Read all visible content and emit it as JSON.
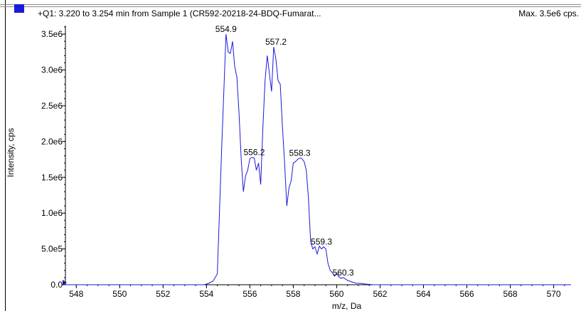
{
  "header": {
    "title": "+Q1: 3.220 to 3.254 min from Sample 1 (CR592-20218-24-BDQ-Fumarat...",
    "max_label": "Max. 3.5e6 cps."
  },
  "colors": {
    "trace": "#1a1adb",
    "axis": "#000000"
  },
  "chart_data": {
    "type": "line",
    "title": "+Q1: 3.220 to 3.254 min from Sample 1 (CR592-20218-24-BDQ-Fumarat...",
    "xlabel": "m/z, Da",
    "ylabel": "Intensity, cps",
    "xlim": [
      547.5,
      570.8
    ],
    "ylim": [
      0,
      3600000.0
    ],
    "xticks": [
      548,
      550,
      552,
      554,
      556,
      558,
      560,
      562,
      564,
      566,
      568,
      570
    ],
    "xtick_labels": [
      "548",
      "550",
      "552",
      "554",
      "556",
      "558",
      "560",
      "562",
      "564",
      "566",
      "568",
      "570"
    ],
    "yticks": [
      0,
      500000,
      1000000,
      1500000,
      2000000,
      2500000,
      3000000,
      3500000
    ],
    "ytick_labels": [
      "0.0",
      "5.0e5",
      "1.0e6",
      "1.5e6",
      "2.0e6",
      "2.5e6",
      "3.0e6",
      "3.5e6"
    ],
    "grid": false,
    "series": [
      {
        "x": [
          547.5,
          553.9,
          554.1,
          554.3,
          554.5,
          554.7,
          554.9,
          555.0,
          555.1,
          555.2,
          555.3,
          555.4,
          555.5,
          555.6,
          555.7,
          555.8,
          555.9,
          556.0,
          556.1,
          556.2,
          556.3,
          556.4,
          556.5,
          556.6,
          556.7,
          556.8,
          556.9,
          557.0,
          557.1,
          557.2,
          557.3,
          557.4,
          557.5,
          557.6,
          557.7,
          557.8,
          557.9,
          558.0,
          558.1,
          558.2,
          558.3,
          558.4,
          558.5,
          558.6,
          558.7,
          558.8,
          558.9,
          559.0,
          559.1,
          559.2,
          559.3,
          559.4,
          559.5,
          559.6,
          559.7,
          559.8,
          559.9,
          560.0,
          560.1,
          560.2,
          560.3,
          560.5,
          560.7,
          560.9,
          561.1,
          561.3,
          561.5,
          561.7,
          562.0,
          570.8
        ],
        "y": [
          0,
          0,
          20000,
          50000,
          150000,
          1900000,
          3500000,
          3250000,
          3230000,
          3400000,
          3050000,
          2900000,
          2400000,
          1750000,
          1300000,
          1520000,
          1600000,
          1760000,
          1780000,
          1770000,
          1600000,
          1700000,
          1400000,
          2200000,
          2850000,
          3200000,
          2950000,
          2700000,
          3320000,
          3150000,
          2850000,
          2800000,
          2200000,
          1700000,
          1100000,
          1350000,
          1450000,
          1700000,
          1720000,
          1750000,
          1770000,
          1760000,
          1720000,
          1600000,
          1200000,
          600000,
          500000,
          530000,
          430000,
          540000,
          500000,
          530000,
          500000,
          300000,
          200000,
          170000,
          120000,
          160000,
          110000,
          90000,
          100000,
          60000,
          40000,
          20000,
          20000,
          10000,
          5000,
          0,
          0,
          0
        ]
      }
    ],
    "annotations": [
      {
        "text": "554.9",
        "x": 554.9,
        "y": 3500000
      },
      {
        "text": "557.2",
        "x": 557.2,
        "y": 3320000
      },
      {
        "text": "556.2",
        "x": 556.2,
        "y": 1780000
      },
      {
        "text": "558.3",
        "x": 558.3,
        "y": 1770000
      },
      {
        "text": "559.3",
        "x": 559.3,
        "y": 530000
      },
      {
        "text": "560.3",
        "x": 560.3,
        "y": 100000
      }
    ]
  }
}
